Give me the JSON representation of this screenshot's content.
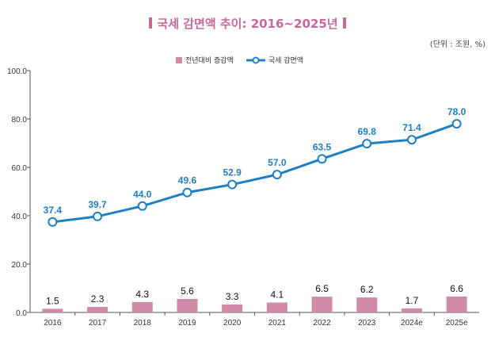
{
  "chart_data": {
    "type": "bar+line",
    "title": "국세 감면액 추이: 2016~2025년",
    "unit_note": "(단위 : 조원, %)",
    "categories": [
      "2016",
      "2017",
      "2018",
      "2019",
      "2020",
      "2021",
      "2022",
      "2023",
      "2024e",
      "2025e"
    ],
    "series": [
      {
        "name": "전년대비 증감액",
        "type": "bar",
        "color": "#d08aa8",
        "values": [
          1.5,
          2.3,
          4.3,
          5.6,
          3.3,
          4.1,
          6.5,
          6.2,
          1.7,
          6.6
        ]
      },
      {
        "name": "국세 감면액",
        "type": "line",
        "color": "#1f7fc1",
        "values": [
          37.4,
          39.7,
          44.0,
          49.6,
          52.9,
          57.0,
          63.5,
          69.8,
          71.4,
          78.0
        ]
      }
    ],
    "ylim": [
      0,
      100
    ],
    "yticks": [
      "0.0",
      "20.0",
      "40.0",
      "60.0",
      "80.0",
      "100.0"
    ],
    "grid": false,
    "legend_position": "top"
  }
}
